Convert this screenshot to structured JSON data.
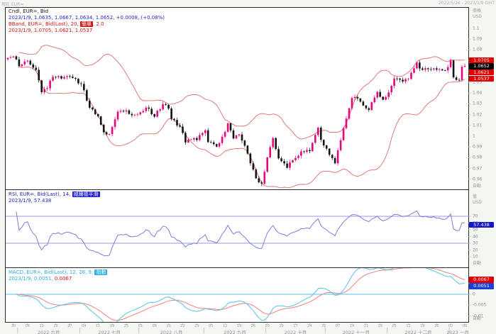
{
  "header": {
    "left": "現在 EUR=",
    "right": "2022/5/26 - 2023/1/9 GMT"
  },
  "colors": {
    "candle_up": "#e6067e",
    "candle_down": "#141414",
    "bband": "#e06c6c",
    "rsi_line": "#7d7ddb",
    "rsi_levels": "#9898de",
    "macd_line": "#57c2e8",
    "macd_signal": "#ef8080",
    "legend_black": "#1a1a1a",
    "legend_blue": "#1f1fd0",
    "legend_red": "#d01414",
    "legend_cyan": "#29aede",
    "badge_red": "#e00000",
    "badge_black": "#000000",
    "badge_blue_rsi": "#1414cc",
    "badge_blue_macd": "#1e3ed8",
    "panel_border": "#2b2b2b",
    "panel_bg": "#ffffff"
  },
  "price_panel": {
    "legend": {
      "line1": "Cndl, EUR=, Bid",
      "line2": "2023/1/9, 1.0635, 1.0667, 1.0634, 1.0652, +0.0008, (+0.08%)",
      "line3_pre": "BBand, EUR=, Bid(Last), 20,",
      "line3_chip": "簡單",
      "line3_post": ", 2.0",
      "line4": "2023/1/9, 1.0705, 1.0621, 1.0537"
    },
    "axis": {
      "header1": "價格",
      "header2": "USD",
      "auto_label": "自動",
      "ticks": [
        {
          "label": "1.1",
          "value": 1.1
        },
        {
          "label": "1.09",
          "value": 1.09
        },
        {
          "label": "1.08",
          "value": 1.08
        },
        {
          "label": "1.07",
          "value": 1.07
        },
        {
          "label": "1.06",
          "value": 1.06
        },
        {
          "label": "1.05",
          "value": 1.05
        },
        {
          "label": "1.04",
          "value": 1.04
        },
        {
          "label": "1.03",
          "value": 1.03
        },
        {
          "label": "1.02",
          "value": 1.02
        },
        {
          "label": "1.01",
          "value": 1.01
        },
        {
          "label": "1",
          "value": 1.0
        },
        {
          "label": "0.99",
          "value": 0.99
        },
        {
          "label": "0.98",
          "value": 0.98
        },
        {
          "label": "0.97",
          "value": 0.97
        },
        {
          "label": "0.96",
          "value": 0.96
        }
      ],
      "badges": [
        {
          "label": "1.0705",
          "value": 1.0705,
          "bg": "badge_red"
        },
        {
          "label": "1.0652",
          "value": 1.0652,
          "bg": "badge_black"
        },
        {
          "label": "1.0621",
          "value": 1.0621,
          "bg": "badge_red"
        },
        {
          "label": "1.0537",
          "value": 1.0537,
          "bg": "badge_red"
        }
      ]
    }
  },
  "rsi_panel": {
    "legend": {
      "line1_pre": "RSI, EUR=, Bid(Last), 14,",
      "line1_chip": "威爾德平滑",
      "line2": "2023/1/9, 57.438"
    },
    "axis": {
      "header1": "值",
      "header2": "USD",
      "auto_label": "自動",
      "ticks": [
        {
          "label": "70",
          "value": 70
        },
        {
          "label": "60",
          "value": 60
        },
        {
          "label": "50",
          "value": 50
        },
        {
          "label": "40",
          "value": 40
        },
        {
          "label": "30",
          "value": 30
        },
        {
          "label": "20",
          "value": 20
        },
        {
          "label": "10",
          "value": 10
        }
      ],
      "badges": [
        {
          "label": "57.438",
          "value": 57.438,
          "bg": "badge_blue_rsi"
        }
      ]
    }
  },
  "macd_panel": {
    "legend": {
      "line1_pre": "MACD, EUR=, Bid(Last), 12, 26, 9,",
      "line1_chip": "指數",
      "line2_cyan": "2023/1/9, 0.0051,",
      "line2_red": "0.0067"
    },
    "axis": {
      "auto_label": "自動",
      "ticks": [
        {
          "label": "0.005",
          "value": 0.005
        },
        {
          "label": "0",
          "value": 0
        },
        {
          "label": "-0.005",
          "value": -0.005
        },
        {
          "label": "-0.01",
          "value": -0.01
        }
      ],
      "badges": [
        {
          "label": "0.0067",
          "value": 0.0067,
          "bg": "badge_red"
        },
        {
          "label": "0.0051",
          "value": 0.0051,
          "bg": "badge_blue_macd"
        }
      ]
    }
  },
  "time_axis": {
    "start_idx": 2,
    "step": 5,
    "day_labels": [
      "30",
      "06",
      "13",
      "20",
      "27",
      "04",
      "11",
      "18",
      "25",
      "01",
      "08",
      "15",
      "22",
      "29",
      "05",
      "12",
      "19",
      "26",
      "03",
      "10",
      "17",
      "24",
      "31",
      "07",
      "14",
      "21",
      "28",
      "05",
      "12",
      "19",
      "26",
      "02",
      "09"
    ],
    "months": [
      {
        "label": "2022 六月",
        "start_idx": 4
      },
      {
        "label": "2022 七月",
        "start_idx": 26
      },
      {
        "label": "2022 八月",
        "start_idx": 47
      },
      {
        "label": "2022 九月",
        "start_idx": 70
      },
      {
        "label": "2022 十月",
        "start_idx": 92
      },
      {
        "label": "2022 十一月",
        "start_idx": 113
      },
      {
        "label": "2022 十二月",
        "start_idx": 135
      },
      {
        "label": "2023 一月",
        "start_idx": 157
      }
    ]
  },
  "chart_data": [
    {
      "type": "candlestick",
      "title": "Cndl, EUR=, Bid",
      "symbol": "EUR=",
      "interval": "daily",
      "x_range": [
        "2022/5/26",
        "2023/1/9"
      ],
      "ylabel": "價格 USD",
      "ylim": [
        0.9507,
        1.119
      ],
      "n_points": 163,
      "last_ohlc": {
        "date": "2023/1/9",
        "open": 1.0635,
        "high": 1.0667,
        "low": 1.0634,
        "close": 1.0652,
        "change": "+0.0008",
        "change_pct": "+0.08%"
      },
      "close_anchors": [
        [
          0,
          1.0725
        ],
        [
          2,
          1.074
        ],
        [
          4,
          1.065
        ],
        [
          7,
          1.07
        ],
        [
          10,
          1.0615
        ],
        [
          11,
          1.0518
        ],
        [
          12,
          1.0408
        ],
        [
          14,
          1.0445
        ],
        [
          16,
          1.055
        ],
        [
          19,
          1.0535
        ],
        [
          22,
          1.0552
        ],
        [
          26,
          1.0484
        ],
        [
          27,
          1.0426
        ],
        [
          29,
          1.0265
        ],
        [
          32,
          1.0183
        ],
        [
          34,
          1.0036
        ],
        [
          36,
          1.0019
        ],
        [
          37,
          1.0086
        ],
        [
          39,
          1.0227
        ],
        [
          41,
          1.0229
        ],
        [
          45,
          1.0199
        ],
        [
          47,
          1.0221
        ],
        [
          49,
          1.0265
        ],
        [
          52,
          1.0181
        ],
        [
          55,
          1.0297
        ],
        [
          57,
          1.0257
        ],
        [
          58,
          1.016
        ],
        [
          61,
          1.0089
        ],
        [
          63,
          0.9942
        ],
        [
          64,
          0.9968
        ],
        [
          67,
          0.9964
        ],
        [
          70,
          1.0054
        ],
        [
          71,
          0.9945
        ],
        [
          73,
          0.9926
        ],
        [
          74,
          0.9903
        ],
        [
          76,
          0.9995
        ],
        [
          78,
          1.012
        ],
        [
          80,
          0.9979
        ],
        [
          82,
          1.0016
        ],
        [
          85,
          0.9838
        ],
        [
          87,
          0.969
        ],
        [
          88,
          0.9609
        ],
        [
          90,
          0.956
        ],
        [
          91,
          0.967
        ],
        [
          92,
          0.9802
        ],
        [
          94,
          0.9982
        ],
        [
          96,
          0.9794
        ],
        [
          99,
          0.9706
        ],
        [
          101,
          0.9777
        ],
        [
          104,
          0.9859
        ],
        [
          107,
          0.9861
        ],
        [
          110,
          1.0079
        ],
        [
          111,
          0.9966
        ],
        [
          113,
          0.9884
        ],
        [
          116,
          0.9749
        ],
        [
          119,
          1.0074
        ],
        [
          122,
          1.0354
        ],
        [
          124,
          1.035
        ],
        [
          128,
          1.0243
        ],
        [
          131,
          1.041
        ],
        [
          133,
          1.0339
        ],
        [
          135,
          1.0406
        ],
        [
          137,
          1.0535
        ],
        [
          140,
          1.0507
        ],
        [
          142,
          1.0531
        ],
        [
          145,
          1.0683
        ],
        [
          146,
          1.0628
        ],
        [
          149,
          1.0622
        ],
        [
          152,
          1.0617
        ],
        [
          155,
          1.061
        ],
        [
          157,
          1.0703
        ],
        [
          158,
          1.0545
        ],
        [
          160,
          1.0521
        ],
        [
          161,
          1.0644
        ],
        [
          162,
          1.0652
        ]
      ],
      "bollinger": {
        "period": 20,
        "mode": "簡單",
        "k": 2.0,
        "last_upper": 1.0705,
        "last_middle": 1.0621,
        "last_lower": 1.0537
      }
    },
    {
      "type": "line",
      "title": "RSI, EUR=, Bid(Last), 14, 威爾德平滑",
      "period": 14,
      "smoothing": "威爾德平滑",
      "last": 57.438,
      "levels": [
        70,
        30
      ],
      "ylim": [
        0,
        100
      ]
    },
    {
      "type": "line",
      "title": "MACD, EUR=, Bid(Last), 12, 26, 9, 指數",
      "fast": 12,
      "slow": 26,
      "signal": 9,
      "method": "指數",
      "last_macd": 0.0051,
      "last_signal": 0.0067,
      "zero_line": 0,
      "ylim": [
        -0.0135,
        0.0105
      ]
    }
  ]
}
